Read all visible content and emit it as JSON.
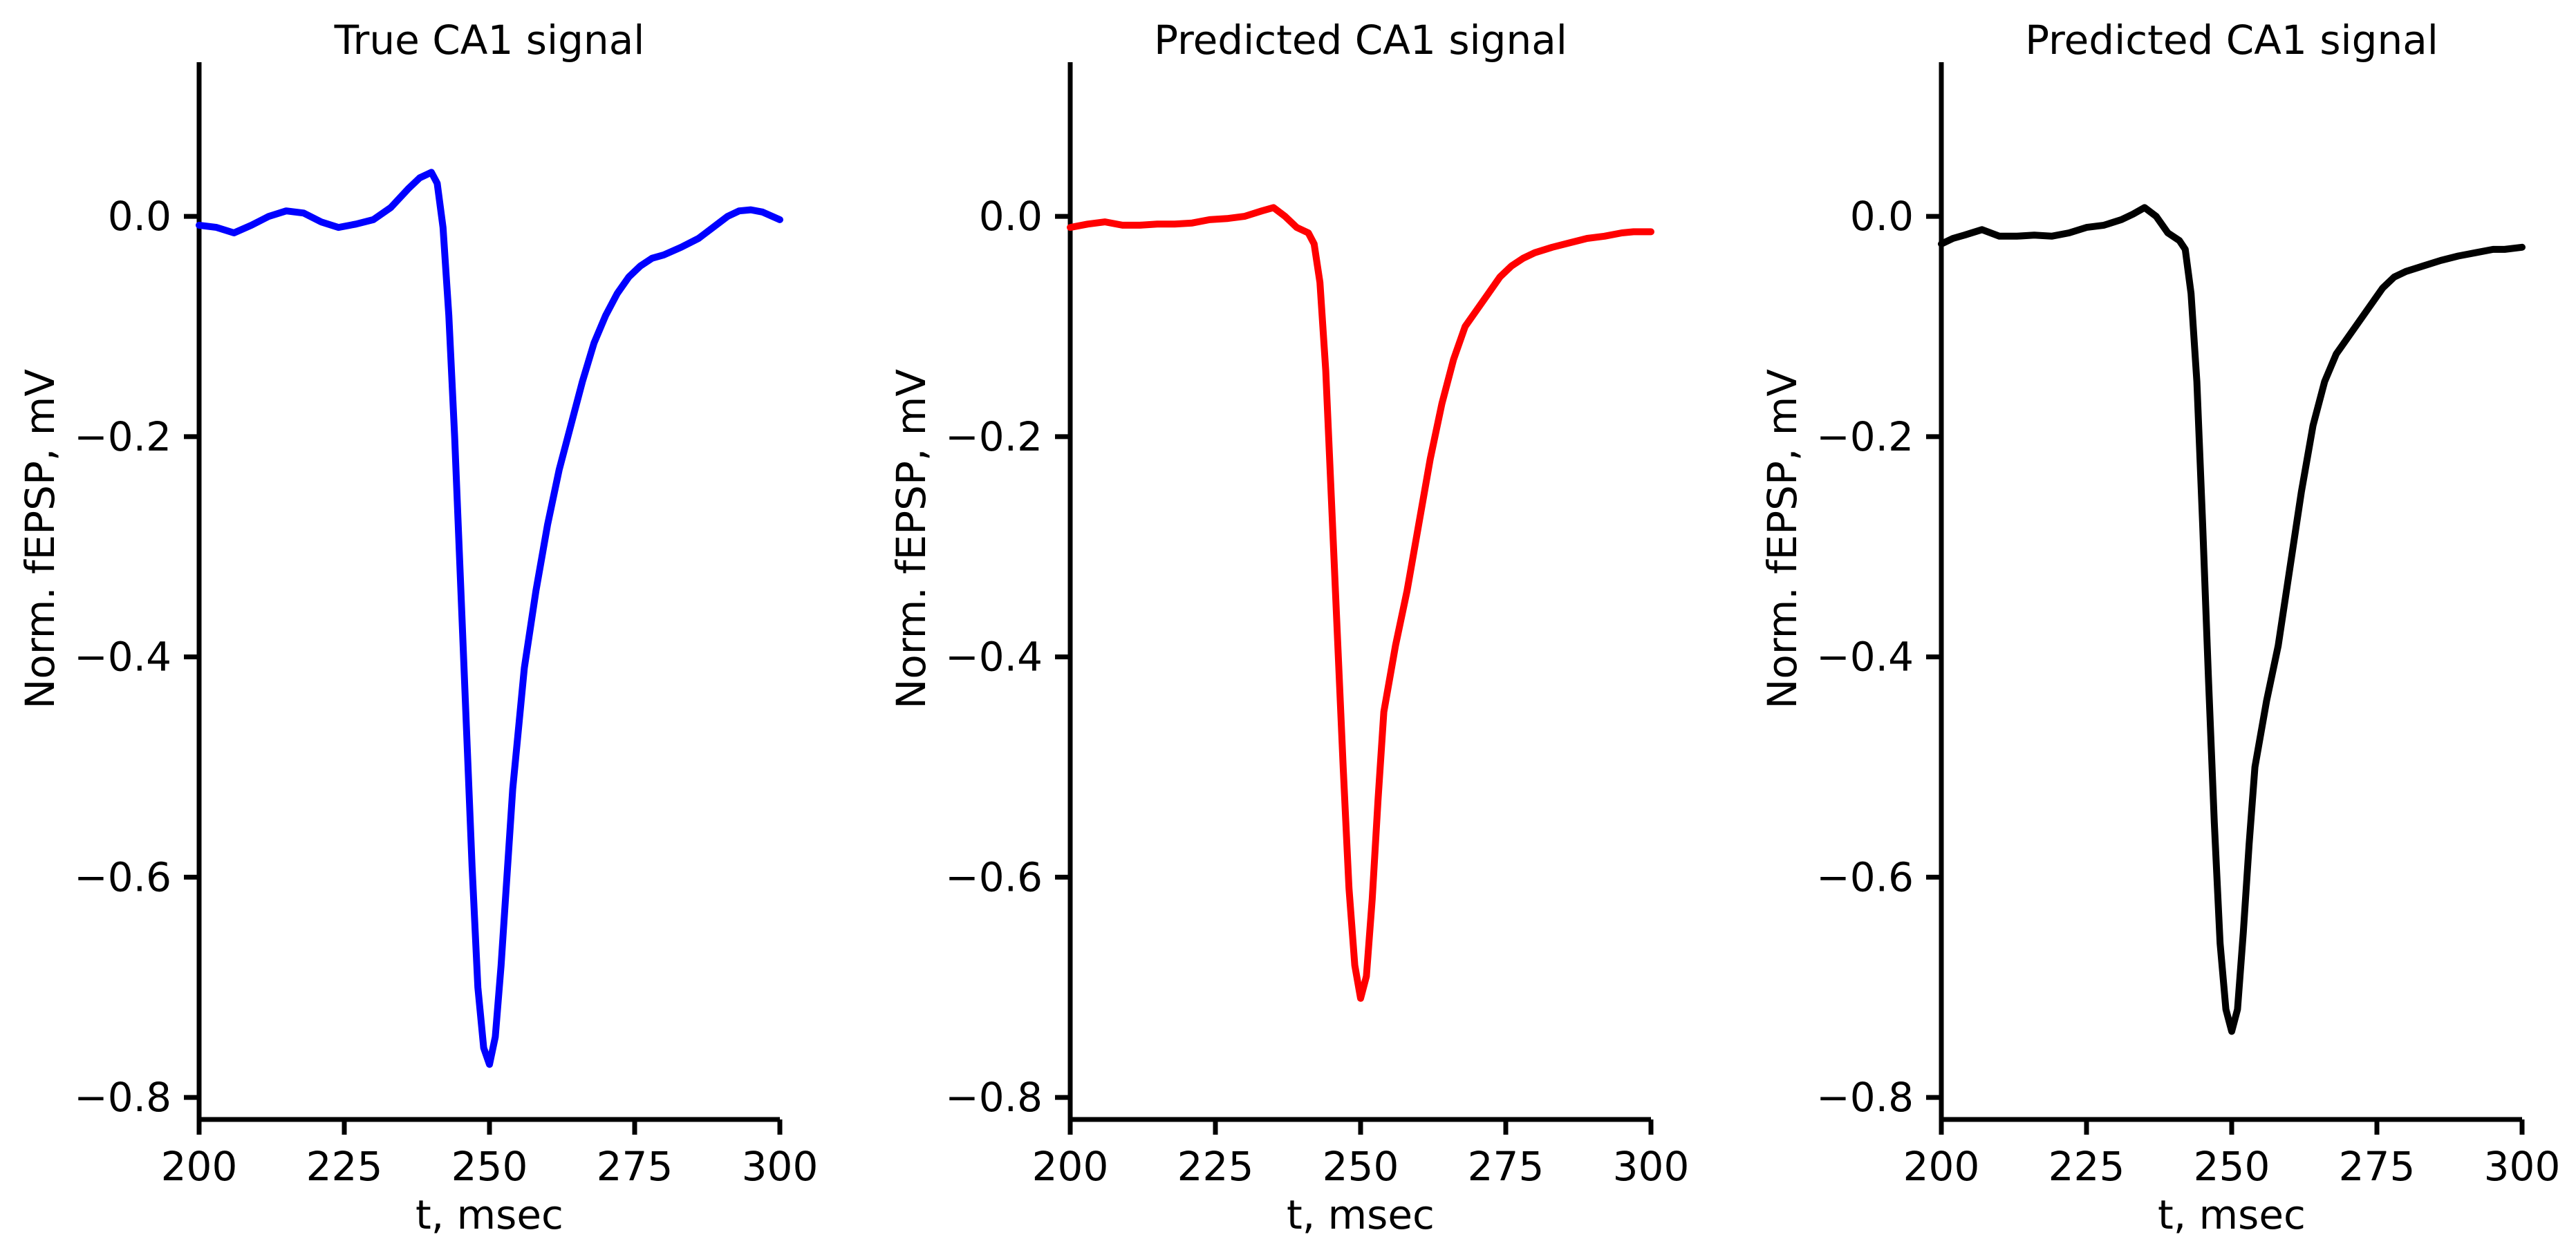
{
  "chart_data": [
    {
      "type": "line",
      "title": "True CA1 signal",
      "xlabel": "t, msec",
      "ylabel": "Norm. fEPSP, mV",
      "xlim": [
        200,
        300
      ],
      "ylim": [
        -0.82,
        0.14
      ],
      "xticks": [
        200,
        225,
        250,
        275,
        300
      ],
      "xtick_labels": [
        "200",
        "225",
        "250",
        "275",
        "300"
      ],
      "yticks": [
        0.0,
        -0.2,
        -0.4,
        -0.6,
        -0.8
      ],
      "ytick_labels": [
        "0.0",
        "−0.2",
        "−0.4",
        "−0.6",
        "−0.8"
      ],
      "grid": false,
      "color": "#0000ff",
      "x": [
        200,
        203,
        206,
        209,
        212,
        215,
        218,
        221,
        224,
        227,
        230,
        233,
        236,
        238,
        240,
        241,
        242,
        243,
        244,
        245,
        246,
        247,
        248,
        249,
        250,
        251,
        252,
        253,
        254,
        256,
        258,
        260,
        262,
        264,
        266,
        268,
        270,
        272,
        274,
        276,
        278,
        280,
        283,
        286,
        289,
        291,
        293,
        295,
        297,
        300
      ],
      "y": [
        -0.008,
        -0.01,
        -0.015,
        -0.008,
        0.0,
        0.005,
        0.003,
        -0.005,
        -0.01,
        -0.007,
        -0.003,
        0.008,
        0.025,
        0.035,
        0.04,
        0.03,
        -0.01,
        -0.09,
        -0.2,
        -0.33,
        -0.46,
        -0.59,
        -0.7,
        -0.755,
        -0.77,
        -0.745,
        -0.68,
        -0.6,
        -0.52,
        -0.41,
        -0.34,
        -0.28,
        -0.23,
        -0.19,
        -0.15,
        -0.115,
        -0.09,
        -0.07,
        -0.055,
        -0.045,
        -0.038,
        -0.035,
        -0.028,
        -0.02,
        -0.008,
        0.0,
        0.005,
        0.006,
        0.004,
        -0.003
      ]
    },
    {
      "type": "line",
      "title": "Predicted CA1 signal",
      "xlabel": "t, msec",
      "ylabel": "Norm. fEPSP, mV",
      "xlim": [
        200,
        300
      ],
      "ylim": [
        -0.82,
        0.14
      ],
      "xticks": [
        200,
        225,
        250,
        275,
        300
      ],
      "xtick_labels": [
        "200",
        "225",
        "250",
        "275",
        "300"
      ],
      "yticks": [
        0.0,
        -0.2,
        -0.4,
        -0.6,
        -0.8
      ],
      "ytick_labels": [
        "0.0",
        "−0.2",
        "−0.4",
        "−0.6",
        "−0.8"
      ],
      "grid": false,
      "color": "#ff0000",
      "x": [
        200,
        203,
        206,
        209,
        212,
        215,
        218,
        221,
        224,
        227,
        230,
        233,
        235,
        237,
        239,
        241,
        242,
        243,
        244,
        245,
        246,
        247,
        248,
        249,
        250,
        251,
        252,
        253,
        254,
        256,
        258,
        260,
        262,
        264,
        266,
        268,
        270,
        272,
        274,
        276,
        278,
        280,
        283,
        286,
        289,
        292,
        295,
        297,
        300
      ],
      "y": [
        -0.01,
        -0.007,
        -0.005,
        -0.008,
        -0.008,
        -0.007,
        -0.007,
        -0.006,
        -0.003,
        -0.002,
        0.0,
        0.005,
        0.008,
        0.0,
        -0.01,
        -0.015,
        -0.025,
        -0.06,
        -0.14,
        -0.26,
        -0.38,
        -0.5,
        -0.61,
        -0.68,
        -0.71,
        -0.69,
        -0.62,
        -0.53,
        -0.45,
        -0.39,
        -0.34,
        -0.28,
        -0.22,
        -0.17,
        -0.13,
        -0.1,
        -0.085,
        -0.07,
        -0.055,
        -0.045,
        -0.038,
        -0.033,
        -0.028,
        -0.024,
        -0.02,
        -0.018,
        -0.015,
        -0.014,
        -0.014
      ]
    },
    {
      "type": "line",
      "title": "Predicted CA1 signal",
      "xlabel": "t, msec",
      "ylabel": "Norm. fEPSP, mV",
      "xlim": [
        200,
        300
      ],
      "ylim": [
        -0.82,
        0.14
      ],
      "xticks": [
        200,
        225,
        250,
        275,
        300
      ],
      "xtick_labels": [
        "200",
        "225",
        "250",
        "275",
        "300"
      ],
      "yticks": [
        0.0,
        -0.2,
        -0.4,
        -0.6,
        -0.8
      ],
      "ytick_labels": [
        "0.0",
        "−0.2",
        "−0.4",
        "−0.6",
        "−0.8"
      ],
      "grid": false,
      "color": "#000000",
      "x": [
        200,
        202,
        204,
        207,
        210,
        213,
        216,
        219,
        222,
        225,
        228,
        231,
        233,
        235,
        237,
        239,
        241,
        242,
        243,
        244,
        245,
        246,
        247,
        248,
        249,
        250,
        251,
        252,
        253,
        254,
        256,
        258,
        260,
        262,
        264,
        266,
        268,
        270,
        272,
        274,
        276,
        278,
        280,
        283,
        286,
        289,
        292,
        295,
        297,
        300
      ],
      "y": [
        -0.025,
        -0.02,
        -0.017,
        -0.012,
        -0.018,
        -0.018,
        -0.017,
        -0.018,
        -0.015,
        -0.01,
        -0.008,
        -0.003,
        0.002,
        0.008,
        0.0,
        -0.015,
        -0.022,
        -0.03,
        -0.07,
        -0.15,
        -0.28,
        -0.42,
        -0.55,
        -0.66,
        -0.72,
        -0.74,
        -0.72,
        -0.65,
        -0.57,
        -0.5,
        -0.44,
        -0.39,
        -0.32,
        -0.25,
        -0.19,
        -0.15,
        -0.125,
        -0.11,
        -0.095,
        -0.08,
        -0.065,
        -0.055,
        -0.05,
        -0.045,
        -0.04,
        -0.036,
        -0.033,
        -0.03,
        -0.03,
        -0.028
      ]
    }
  ]
}
